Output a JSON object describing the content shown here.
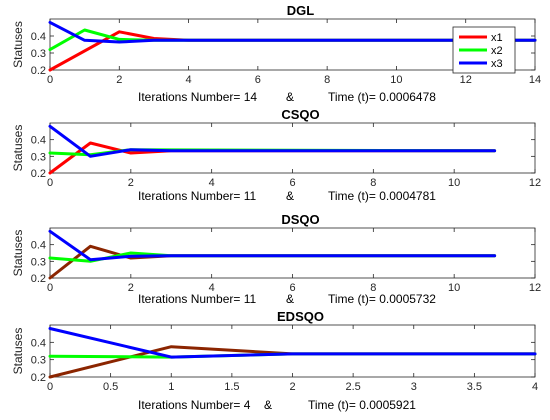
{
  "chart_data": [
    {
      "type": "line",
      "title": "DGL",
      "ylabel": "Statuses",
      "xlabel_parts": [
        "Iterations Number= 14",
        "&",
        "Time (t)=  0.0006478"
      ],
      "xlim": [
        0,
        14
      ],
      "ylim": [
        0.2,
        0.5
      ],
      "xticks": [
        0,
        2,
        4,
        6,
        8,
        10,
        12,
        14
      ],
      "xtick_labels": [
        "0",
        "2",
        "4",
        "6",
        "8",
        "10",
        "12",
        "14"
      ],
      "yticks": [
        0.2,
        0.3,
        0.4
      ],
      "ytick_labels": [
        "0.2",
        "0.3",
        "0.4"
      ],
      "legend": {
        "position": "top-right",
        "entries": [
          "x1",
          "x2",
          "x3"
        ]
      },
      "series": [
        {
          "name": "x1",
          "color": "#ff0000",
          "x": [
            0,
            2,
            3,
            4,
            14
          ],
          "y": [
            0.2,
            0.425,
            0.385,
            0.375,
            0.375
          ]
        },
        {
          "name": "x2",
          "color": "#00ff00",
          "x": [
            0,
            1,
            2,
            3,
            14
          ],
          "y": [
            0.32,
            0.435,
            0.38,
            0.375,
            0.375
          ]
        },
        {
          "name": "x3",
          "color": "#0000ff",
          "x": [
            0,
            1,
            2,
            3,
            14
          ],
          "y": [
            0.48,
            0.375,
            0.365,
            0.375,
            0.375
          ]
        }
      ]
    },
    {
      "type": "line",
      "title": "CSQO",
      "ylabel": "Statuses",
      "xlabel_parts": [
        "Iterations Number= 11",
        "&",
        "Time (t)=  0.0004781"
      ],
      "xlim": [
        0,
        12
      ],
      "ylim": [
        0.2,
        0.5
      ],
      "xticks": [
        0,
        2,
        4,
        6,
        8,
        10,
        12
      ],
      "xtick_labels": [
        "0",
        "2",
        "4",
        "6",
        "8",
        "10",
        "12"
      ],
      "yticks": [
        0.2,
        0.3,
        0.4
      ],
      "ytick_labels": [
        "0.2",
        "0.3",
        "0.4"
      ],
      "series": [
        {
          "name": "x1",
          "color": "#ff0000",
          "x": [
            0,
            1,
            2,
            3,
            11
          ],
          "y": [
            0.2,
            0.38,
            0.32,
            0.333,
            0.333
          ]
        },
        {
          "name": "x2",
          "color": "#00ff00",
          "x": [
            0,
            1,
            2,
            11
          ],
          "y": [
            0.32,
            0.31,
            0.34,
            0.333
          ]
        },
        {
          "name": "x3",
          "color": "#0000ff",
          "x": [
            0,
            1,
            2,
            3,
            11
          ],
          "y": [
            0.48,
            0.3,
            0.34,
            0.333,
            0.333
          ]
        }
      ]
    },
    {
      "type": "line",
      "title": "DSQO",
      "ylabel": "Statuses",
      "xlabel_parts": [
        "Iterations Number= 11",
        "&",
        "Time (t)=  0.0005732"
      ],
      "xlim": [
        0,
        12
      ],
      "ylim": [
        0.2,
        0.5
      ],
      "xticks": [
        0,
        2,
        4,
        6,
        8,
        10,
        12
      ],
      "xtick_labels": [
        "0",
        "2",
        "4",
        "6",
        "8",
        "10",
        "12"
      ],
      "yticks": [
        0.2,
        0.3,
        0.4
      ],
      "ytick_labels": [
        "0.2",
        "0.3",
        "0.4"
      ],
      "series": [
        {
          "name": "x1",
          "color": "#8b2500",
          "x": [
            0,
            1,
            2,
            3,
            11
          ],
          "y": [
            0.2,
            0.39,
            0.32,
            0.333,
            0.333
          ]
        },
        {
          "name": "x2",
          "color": "#00ff00",
          "x": [
            0,
            1,
            2,
            3,
            11
          ],
          "y": [
            0.32,
            0.3,
            0.35,
            0.333,
            0.333
          ]
        },
        {
          "name": "x3",
          "color": "#0000ff",
          "x": [
            0,
            1,
            2,
            3,
            11
          ],
          "y": [
            0.48,
            0.31,
            0.33,
            0.333,
            0.333
          ]
        }
      ]
    },
    {
      "type": "line",
      "title": "EDSQO",
      "ylabel": "Statuses",
      "xlabel_parts": [
        "Iterations Number= 4",
        "&",
        "Time (t)=  0.0005921"
      ],
      "xlim": [
        0,
        4
      ],
      "ylim": [
        0.2,
        0.5
      ],
      "xticks": [
        0,
        0.5,
        1,
        1.5,
        2,
        2.5,
        3,
        3.5,
        4
      ],
      "xtick_labels": [
        "0",
        "0.5",
        "1",
        "1.5",
        "2",
        "2.5",
        "3",
        "3.5",
        "4"
      ],
      "yticks": [
        0.2,
        0.3,
        0.4
      ],
      "ytick_labels": [
        "0.2",
        "0.3",
        "0.4"
      ],
      "series": [
        {
          "name": "x1",
          "color": "#8b2500",
          "x": [
            0,
            1,
            2,
            4
          ],
          "y": [
            0.2,
            0.375,
            0.333,
            0.333
          ]
        },
        {
          "name": "x2",
          "color": "#00ff00",
          "x": [
            0,
            1,
            2,
            4
          ],
          "y": [
            0.32,
            0.315,
            0.333,
            0.333
          ]
        },
        {
          "name": "x3",
          "color": "#0000ff",
          "x": [
            0,
            1,
            2,
            4
          ],
          "y": [
            0.48,
            0.315,
            0.333,
            0.333
          ]
        }
      ]
    }
  ]
}
